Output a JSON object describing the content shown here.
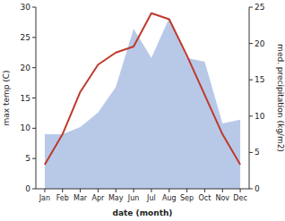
{
  "chart_data": {
    "type": "line",
    "categories": [
      "Jan",
      "Feb",
      "Mar",
      "Apr",
      "May",
      "Jun",
      "Jul",
      "Aug",
      "Sep",
      "Oct",
      "Nov",
      "Dec"
    ],
    "xlabel": "date (month)",
    "ylabel": "max temp (C)",
    "y2label": "med. precipitation (kg/m2)",
    "series": [
      {
        "type": "area",
        "axis": "y2",
        "color": "#b8c9e8",
        "values": [
          7.5,
          7.5,
          8.5,
          10.5,
          14.0,
          22.0,
          18.0,
          23.5,
          18.0,
          17.5,
          9.0,
          9.5
        ]
      },
      {
        "type": "line",
        "color": "#c0392b",
        "values": [
          4.0,
          9.0,
          16.0,
          20.5,
          22.5,
          23.5,
          29.0,
          28.0,
          22.0,
          15.5,
          9.0,
          4.0
        ]
      }
    ],
    "ylim": [
      0,
      30
    ],
    "yticks": [
      0,
      5,
      10,
      15,
      20,
      25,
      30
    ],
    "y2lim": [
      0,
      25
    ],
    "y2ticks": [
      0,
      5,
      10,
      15,
      20,
      25
    ],
    "grid": false
  }
}
